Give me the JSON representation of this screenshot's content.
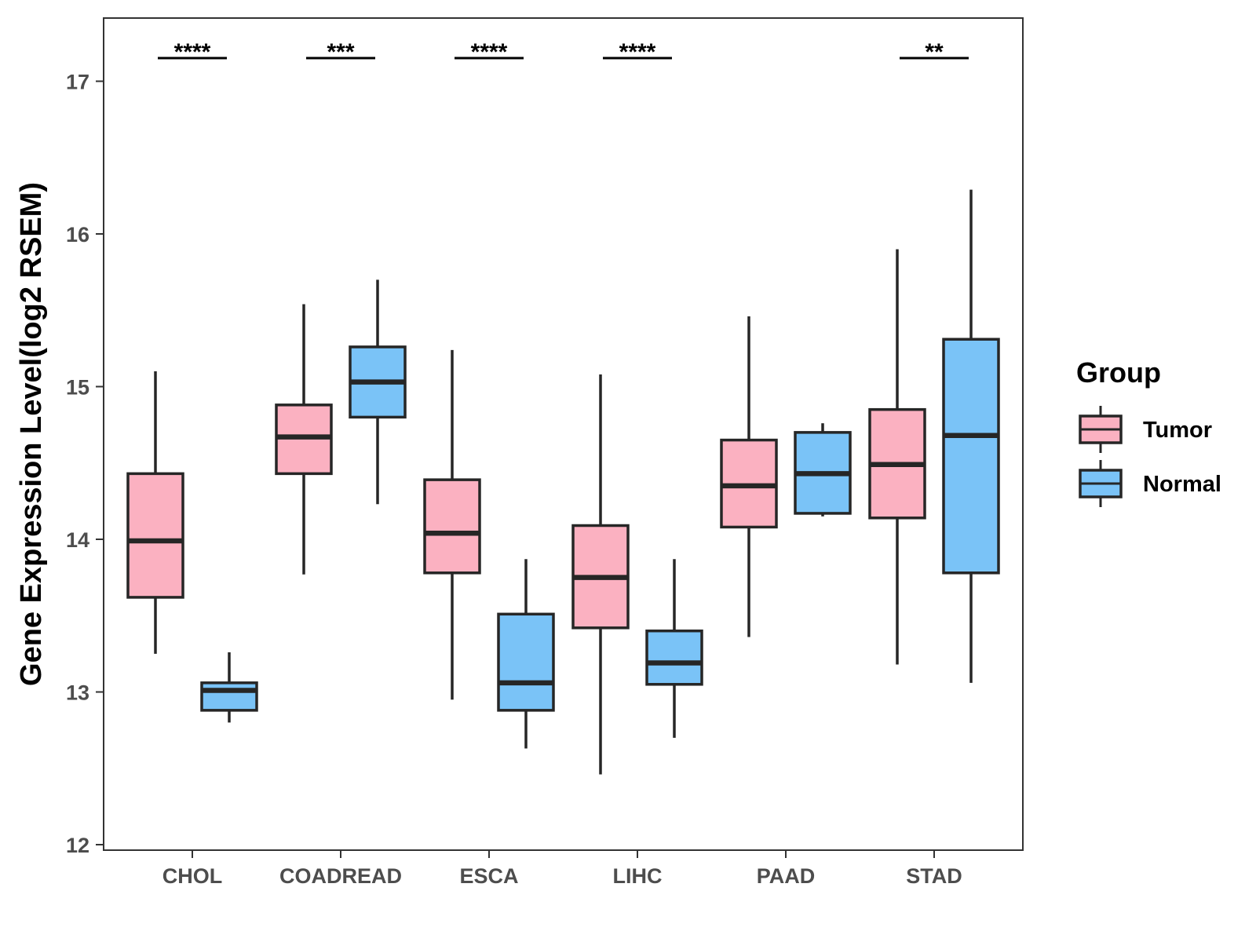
{
  "chart_data": {
    "type": "boxplot",
    "ylabel": "Gene Expression Level(log2 RSEM)",
    "xlabel": "",
    "ylim": [
      11.98,
      17.45
    ],
    "yticks": [
      12,
      13,
      14,
      15,
      16,
      17
    ],
    "categories": [
      "CHOL",
      "COADREAD",
      "ESCA",
      "LIHC",
      "PAAD",
      "STAD"
    ],
    "legend": {
      "title": "Group",
      "position": "right"
    },
    "grid": false,
    "series": [
      {
        "name": "Tumor",
        "color": "#FBB1C1",
        "boxes": [
          {
            "min": 13.25,
            "q1": 13.62,
            "median": 13.99,
            "q3": 14.43,
            "max": 15.1
          },
          {
            "min": 13.77,
            "q1": 14.43,
            "median": 14.67,
            "q3": 14.88,
            "max": 15.54
          },
          {
            "min": 12.95,
            "q1": 13.78,
            "median": 14.04,
            "q3": 14.39,
            "max": 15.24
          },
          {
            "min": 12.46,
            "q1": 13.42,
            "median": 13.75,
            "q3": 14.09,
            "max": 15.08
          },
          {
            "min": 13.36,
            "q1": 14.08,
            "median": 14.35,
            "q3": 14.65,
            "max": 15.46
          },
          {
            "min": 13.18,
            "q1": 14.14,
            "median": 14.49,
            "q3": 14.85,
            "max": 15.9
          }
        ]
      },
      {
        "name": "Normal",
        "color": "#7AC3F7",
        "boxes": [
          {
            "min": 12.8,
            "q1": 12.88,
            "median": 13.01,
            "q3": 13.06,
            "max": 13.26
          },
          {
            "min": 14.23,
            "q1": 14.8,
            "median": 15.03,
            "q3": 15.26,
            "max": 15.7
          },
          {
            "min": 12.63,
            "q1": 12.88,
            "median": 13.06,
            "q3": 13.51,
            "max": 13.87
          },
          {
            "min": 12.7,
            "q1": 13.05,
            "median": 13.19,
            "q3": 13.4,
            "max": 13.87
          },
          {
            "min": 14.15,
            "q1": 14.17,
            "median": 14.43,
            "q3": 14.7,
            "max": 14.76
          },
          {
            "min": 13.06,
            "q1": 13.78,
            "median": 14.68,
            "q3": 15.31,
            "max": 16.29
          }
        ]
      }
    ],
    "significance": [
      "****",
      "***",
      "****",
      "****",
      "",
      "**"
    ]
  }
}
